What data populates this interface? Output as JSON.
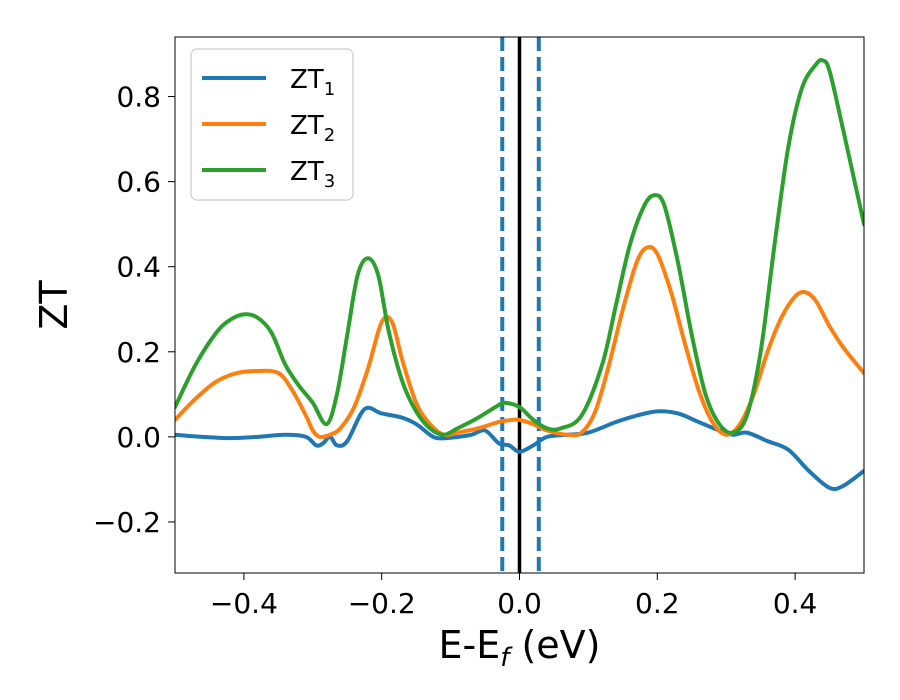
{
  "chart_data": {
    "type": "line",
    "xlabel": {
      "base": "E-E",
      "subscript": "f",
      "suffix": " (eV)"
    },
    "ylabel": "ZT",
    "xlim": [
      -0.5,
      0.5
    ],
    "ylim": [
      -0.32,
      0.94
    ],
    "xticks": [
      -0.4,
      -0.2,
      0.0,
      0.2,
      0.4
    ],
    "xtick_labels": [
      "−0.4",
      "−0.2",
      "0.0",
      "0.2",
      "0.4"
    ],
    "yticks": [
      -0.2,
      0.0,
      0.2,
      0.4,
      0.6,
      0.8
    ],
    "ytick_labels": [
      "−0.2",
      "0.0",
      "0.2",
      "0.4",
      "0.6",
      "0.8"
    ],
    "grid": false,
    "legend_position": "top-left",
    "vertical_lines": [
      {
        "x": -0.025,
        "style": "dashed",
        "color": "#1f77b4"
      },
      {
        "x": 0.0,
        "style": "solid",
        "color": "#000000"
      },
      {
        "x": 0.028,
        "style": "dashed",
        "color": "#1f77b4"
      }
    ],
    "series": [
      {
        "name": "ZT",
        "subscript": "1",
        "color": "#1f77b4",
        "x": [
          -0.5,
          -0.46,
          -0.42,
          -0.38,
          -0.34,
          -0.31,
          -0.295,
          -0.285,
          -0.275,
          -0.265,
          -0.25,
          -0.225,
          -0.2,
          -0.17,
          -0.15,
          -0.13,
          -0.12,
          -0.1,
          -0.07,
          -0.05,
          -0.03,
          -0.015,
          0.0,
          0.02,
          0.04,
          0.07,
          0.1,
          0.14,
          0.17,
          0.2,
          0.23,
          0.26,
          0.29,
          0.31,
          0.33,
          0.36,
          0.39,
          0.42,
          0.45,
          0.47,
          0.5
        ],
        "y": [
          0.005,
          0.0,
          -0.003,
          0.0,
          0.005,
          0.0,
          -0.02,
          -0.015,
          0.0,
          -0.02,
          -0.01,
          0.065,
          0.055,
          0.045,
          0.03,
          0.005,
          -0.003,
          -0.002,
          0.005,
          0.015,
          -0.015,
          -0.02,
          -0.035,
          -0.02,
          0.0,
          0.005,
          0.01,
          0.035,
          0.05,
          0.06,
          0.055,
          0.035,
          0.015,
          0.005,
          0.01,
          -0.01,
          -0.03,
          -0.08,
          -0.12,
          -0.115,
          -0.08
        ]
      },
      {
        "name": "ZT",
        "subscript": "2",
        "color": "#ff7f0e",
        "x": [
          -0.5,
          -0.47,
          -0.44,
          -0.41,
          -0.38,
          -0.35,
          -0.33,
          -0.31,
          -0.3,
          -0.29,
          -0.275,
          -0.26,
          -0.24,
          -0.22,
          -0.2,
          -0.185,
          -0.17,
          -0.15,
          -0.13,
          -0.11,
          -0.09,
          -0.06,
          -0.03,
          -0.01,
          0.0,
          0.02,
          0.04,
          0.07,
          0.09,
          0.11,
          0.13,
          0.15,
          0.17,
          0.185,
          0.2,
          0.22,
          0.24,
          0.26,
          0.28,
          0.3,
          0.32,
          0.34,
          0.36,
          0.38,
          0.4,
          0.415,
          0.43,
          0.45,
          0.47,
          0.5
        ],
        "y": [
          0.04,
          0.09,
          0.13,
          0.15,
          0.155,
          0.15,
          0.11,
          0.05,
          0.015,
          0.0,
          0.005,
          0.02,
          0.07,
          0.16,
          0.27,
          0.27,
          0.18,
          0.08,
          0.03,
          0.005,
          0.01,
          0.02,
          0.035,
          0.04,
          0.04,
          0.03,
          0.015,
          0.005,
          0.01,
          0.06,
          0.17,
          0.3,
          0.41,
          0.445,
          0.43,
          0.34,
          0.22,
          0.11,
          0.035,
          0.005,
          0.03,
          0.1,
          0.2,
          0.28,
          0.33,
          0.34,
          0.32,
          0.26,
          0.21,
          0.15
        ]
      },
      {
        "name": "ZT",
        "subscript": "3",
        "color": "#2ca02c",
        "x": [
          -0.5,
          -0.47,
          -0.44,
          -0.42,
          -0.4,
          -0.38,
          -0.36,
          -0.34,
          -0.32,
          -0.3,
          -0.28,
          -0.265,
          -0.25,
          -0.235,
          -0.22,
          -0.205,
          -0.19,
          -0.17,
          -0.15,
          -0.13,
          -0.11,
          -0.09,
          -0.06,
          -0.03,
          -0.02,
          0.0,
          0.02,
          0.04,
          0.06,
          0.09,
          0.12,
          0.14,
          0.16,
          0.18,
          0.195,
          0.21,
          0.23,
          0.25,
          0.27,
          0.29,
          0.31,
          0.33,
          0.35,
          0.37,
          0.39,
          0.41,
          0.43,
          0.44,
          0.45,
          0.47,
          0.5
        ],
        "y": [
          0.07,
          0.17,
          0.245,
          0.275,
          0.288,
          0.28,
          0.245,
          0.17,
          0.12,
          0.08,
          0.03,
          0.1,
          0.24,
          0.38,
          0.42,
          0.38,
          0.25,
          0.13,
          0.06,
          0.02,
          0.005,
          0.02,
          0.045,
          0.075,
          0.08,
          0.07,
          0.04,
          0.02,
          0.02,
          0.05,
          0.17,
          0.31,
          0.45,
          0.54,
          0.568,
          0.545,
          0.41,
          0.24,
          0.1,
          0.03,
          0.01,
          0.05,
          0.2,
          0.45,
          0.68,
          0.82,
          0.875,
          0.885,
          0.86,
          0.72,
          0.5
        ]
      }
    ]
  }
}
